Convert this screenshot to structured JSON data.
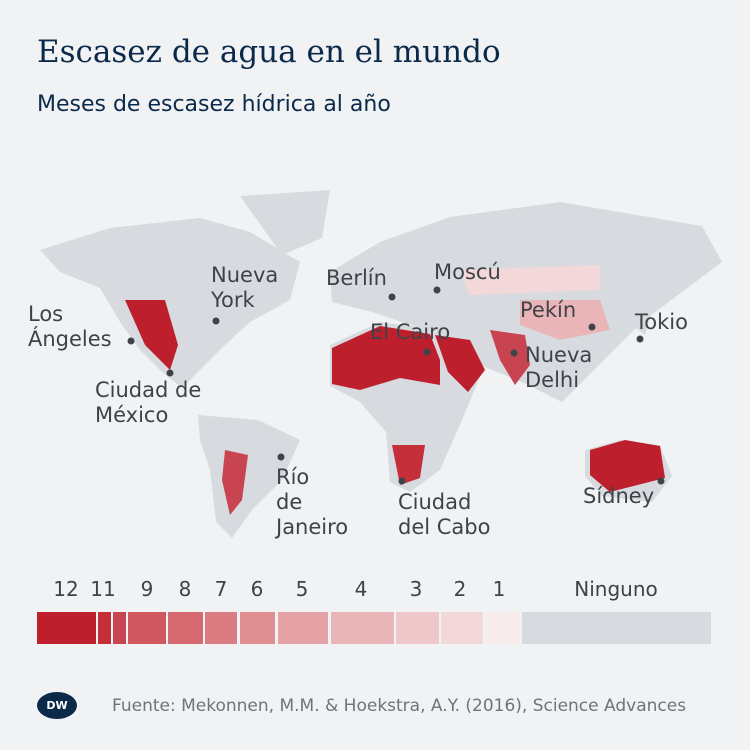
{
  "title": "Escasez de agua en el mundo",
  "subtitle": "Meses de escasez hídrica al año",
  "cities": [
    {
      "name": "Los\nÁngeles",
      "line1": "Los",
      "line2": "Ángeles"
    },
    {
      "line1": "Ciudad de",
      "line2": "México"
    },
    {
      "line1": "Nueva",
      "line2": "York"
    },
    {
      "line1": "Berlín"
    },
    {
      "line1": "Moscú"
    },
    {
      "line1": "El Cairo"
    },
    {
      "line1": "Pekín"
    },
    {
      "line1": "Tokio"
    },
    {
      "line1": "Nueva",
      "line2": "Delhi"
    },
    {
      "line1": "Río",
      "line2": "de",
      "line3": "Janeiro"
    },
    {
      "line1": "Ciudad",
      "line2": "del Cabo"
    },
    {
      "line1": "Sídney"
    }
  ],
  "legend": {
    "labels": [
      "12",
      "11",
      "9",
      "8",
      "7",
      "6",
      "5",
      "4",
      "3",
      "2",
      "1",
      "Ninguno"
    ],
    "colors": {
      "12": "#be1f2d",
      "11": "#c52f3a",
      "10": "#c84450",
      "9": "#cf5861",
      "8": "#d56a71",
      "7": "#da7c82",
      "6": "#df8f93",
      "5": "#e4a2a6",
      "4": "#eab5b8",
      "3": "#eec7c9",
      "2": "#f3d8d9",
      "1": "#f8ebeb",
      "none": "#d7dbdf"
    }
  },
  "source": "Fuente: Mekonnen, M.M. & Hoekstra, A.Y. (2016), Science Advances",
  "logo": "DW"
}
